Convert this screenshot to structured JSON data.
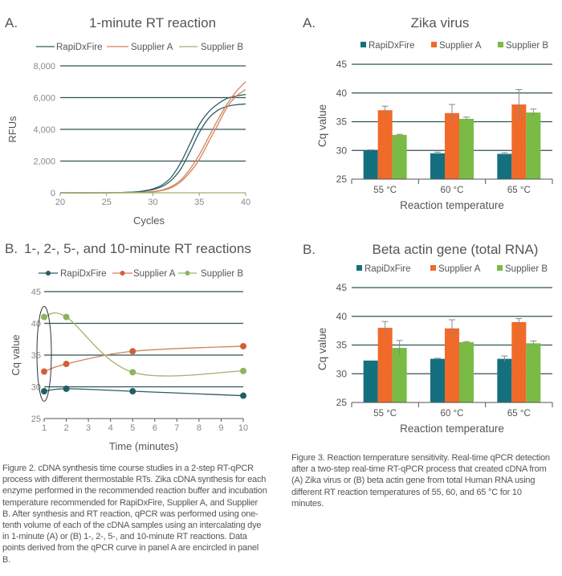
{
  "colors": {
    "rapidx_line": "#2b5d63",
    "supA_line": "#d4825a",
    "supB_line": "#9ab46e",
    "rapidx_bar": "#14707f",
    "supA_bar": "#f06a2a",
    "supB_bar": "#79bb44",
    "grid": "#2f5355",
    "tick": "#888888",
    "text": "#555555"
  },
  "chart_data": [
    {
      "type": "line",
      "panel_label": "A.",
      "title": "1-minute RT reaction",
      "xlabel": "Cycles",
      "ylabel": "RFUs",
      "xlim": [
        20,
        40
      ],
      "ylim": [
        0,
        8000
      ],
      "xticks": [
        "20",
        "25",
        "30",
        "35",
        "40"
      ],
      "yticks": [
        "0",
        "2,000",
        "4,000",
        "6,000",
        "8,000"
      ],
      "grid": true,
      "legend_position": "top",
      "legend": [
        "RapiDxFire",
        "Supplier A",
        "Supplier B"
      ],
      "x": [
        20,
        25,
        28,
        29,
        30,
        31,
        32,
        33,
        34,
        35,
        36,
        37,
        38,
        39,
        40
      ],
      "series": [
        {
          "name": "RapiDxFire",
          "values": [
            0,
            0,
            50,
            120,
            250,
            500,
            1000,
            1900,
            3100,
            4300,
            5100,
            5600,
            5950,
            6100,
            6200
          ]
        },
        {
          "name": "RapiDxFire",
          "values": [
            0,
            0,
            40,
            100,
            200,
            400,
            800,
            1500,
            2600,
            3800,
            4700,
            5200,
            5450,
            5550,
            5600
          ]
        },
        {
          "name": "Supplier A",
          "values": [
            0,
            0,
            10,
            30,
            80,
            180,
            400,
            800,
            1500,
            2400,
            3500,
            4600,
            5600,
            6400,
            7000
          ]
        },
        {
          "name": "Supplier A",
          "values": [
            0,
            0,
            10,
            25,
            60,
            150,
            330,
            700,
            1300,
            2100,
            3200,
            4300,
            5400,
            6100,
            6500
          ]
        },
        {
          "name": "Supplier B",
          "values": [
            0,
            0,
            0,
            0,
            0,
            0,
            0,
            0,
            0,
            0,
            0,
            0,
            0,
            0,
            0
          ]
        }
      ]
    },
    {
      "type": "line",
      "panel_label": "B.",
      "title": "1-, 2-, 5-, and 10-minute RT reactions",
      "xlabel": "Time (minutes)",
      "ylabel": "Cq value",
      "xlim": [
        1,
        10
      ],
      "ylim": [
        25,
        45
      ],
      "xticks": [
        "1",
        "2",
        "3",
        "4",
        "5",
        "6",
        "7",
        "8",
        "9",
        "10"
      ],
      "yticks": [
        "25",
        "30",
        "35",
        "40",
        "45"
      ],
      "grid": true,
      "legend_position": "top",
      "x": [
        1,
        2,
        5,
        10
      ],
      "series": [
        {
          "name": "RapiDxFire",
          "values": [
            29.3,
            29.7,
            29.3,
            28.6
          ]
        },
        {
          "name": "Supplier A",
          "values": [
            32.4,
            33.6,
            35.6,
            36.4
          ]
        },
        {
          "name": "Supplier B",
          "values": [
            41.0,
            41.0,
            32.3,
            32.5
          ]
        }
      ],
      "annotation": "ellipse encircling the 1-minute points"
    },
    {
      "type": "bar",
      "panel_label": "A.",
      "title": "Zika virus",
      "xlabel": "Reaction temperature",
      "ylabel": "Cq value",
      "ylim": [
        25,
        45
      ],
      "yticks": [
        "25",
        "30",
        "35",
        "40",
        "45"
      ],
      "grid": true,
      "legend_position": "top",
      "categories": [
        "55 °C",
        "60 °C",
        "65 °C"
      ],
      "series": [
        {
          "name": "RapiDxFire",
          "values": [
            30.0,
            29.5,
            29.4
          ],
          "errors": [
            0.1,
            0.2,
            0.2
          ]
        },
        {
          "name": "Supplier A",
          "values": [
            37.0,
            36.5,
            38.0
          ],
          "errors": [
            0.7,
            1.5,
            2.6
          ]
        },
        {
          "name": "Supplier B",
          "values": [
            32.7,
            35.5,
            36.6
          ],
          "errors": [
            0.1,
            0.3,
            0.6
          ]
        }
      ]
    },
    {
      "type": "bar",
      "panel_label": "B.",
      "title": "Beta actin gene (total RNA)",
      "xlabel": "Reaction temperature",
      "ylabel": "Cq value",
      "ylim": [
        25,
        45
      ],
      "yticks": [
        "25",
        "30",
        "35",
        "40",
        "45"
      ],
      "grid": true,
      "legend_position": "top",
      "categories": [
        "55 °C",
        "60 °C",
        "65 °C"
      ],
      "series": [
        {
          "name": "RapiDxFire",
          "values": [
            32.3,
            32.6,
            32.6
          ],
          "errors": [
            0.0,
            0.1,
            0.5
          ]
        },
        {
          "name": "Supplier A",
          "values": [
            38.0,
            37.9,
            39.0
          ],
          "errors": [
            1.1,
            1.5,
            0.6
          ]
        },
        {
          "name": "Supplier B",
          "values": [
            34.5,
            35.5,
            35.3
          ],
          "errors": [
            1.3,
            0.1,
            0.4
          ]
        }
      ]
    }
  ],
  "captions": {
    "figure2": "Figure 2. cDNA synthesis time course studies in a 2-step RT-qPCR process with different thermostable RTs. Zika cDNA synthesis for each enzyme performed in the recommended reaction buffer and incubation temperature recommended for RapiDxFire, Supplier A, and Supplier B. After synthesis and RT reaction, qPCR was performed using one-tenth volume of each of the cDNA samples using an intercalating dye in 1-minute (A) or (B) 1-, 2-, 5-, and 10-minute RT reactions. Data points derived from the qPCR curve in panel A are encircled in panel B.",
    "figure3": "Figure 3. Reaction temperature sensitivity. Real-time qPCR detection after a two-step real-time RT-qPCR process that created cDNA from (A) Zika virus or (B) beta actin gene from total Human RNA using different RT reaction temperatures of 55, 60, and 65 °C for 10 minutes."
  }
}
